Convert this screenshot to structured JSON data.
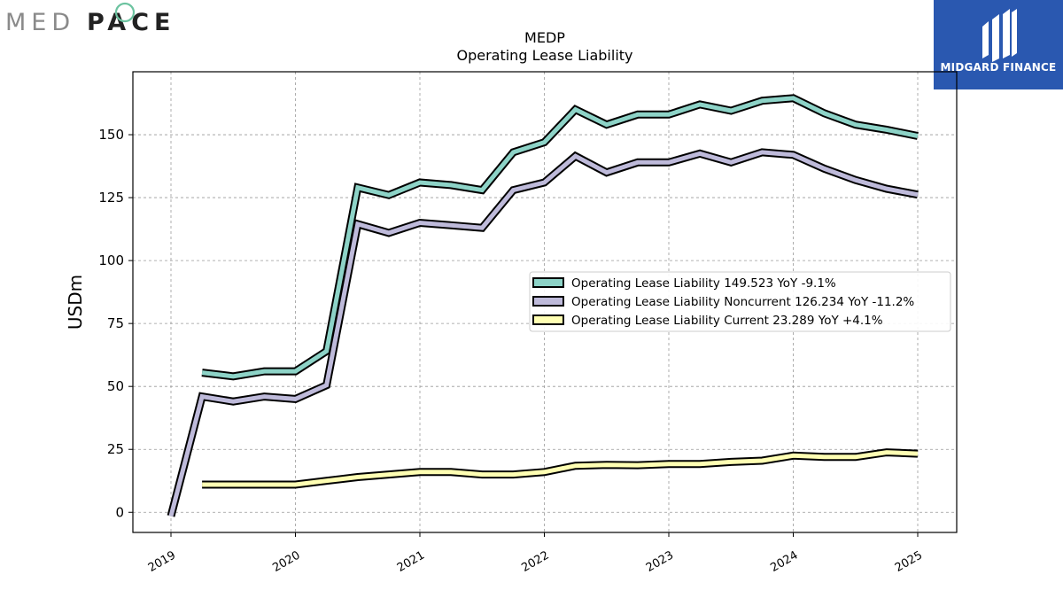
{
  "brand": {
    "left_logo_text_light": "MED",
    "left_logo_text_dark": "PACE",
    "right_logo_text": "MIDGARD FINANCE",
    "right_logo_bg": "#2a58b0",
    "accent_green": "#6cc3a0"
  },
  "chart_data": {
    "type": "line",
    "title": "MEDP",
    "subtitle": "Operating Lease Liability",
    "xlabel": "",
    "ylabel": "USDm",
    "ylim": [
      -8,
      175
    ],
    "xlim": [
      2018.7,
      2025.3
    ],
    "yticks": [
      0,
      25,
      50,
      75,
      100,
      125,
      150
    ],
    "xticks": [
      "2019",
      "2020",
      "2021",
      "2022",
      "2023",
      "2024",
      "2025"
    ],
    "grid": true,
    "legend_position": "center-right",
    "series": [
      {
        "name": "Operating Lease Liability",
        "legend_label": "Operating Lease Liability  149.523 YoY -9.1%",
        "color": "#8dd3c7",
        "points": [
          [
            2019.25,
            55.5
          ],
          [
            2019.5,
            54.0
          ],
          [
            2019.75,
            56.0
          ],
          [
            2020.0,
            56.0
          ],
          [
            2020.25,
            64.0
          ],
          [
            2020.5,
            129.0
          ],
          [
            2020.75,
            126.0
          ],
          [
            2021.0,
            131.0
          ],
          [
            2021.25,
            130.0
          ],
          [
            2021.5,
            128.0
          ],
          [
            2021.75,
            143.0
          ],
          [
            2022.0,
            147.0
          ],
          [
            2022.25,
            160.0
          ],
          [
            2022.5,
            154.0
          ],
          [
            2022.75,
            158.0
          ],
          [
            2023.0,
            158.0
          ],
          [
            2023.25,
            162.0
          ],
          [
            2023.5,
            159.5
          ],
          [
            2023.75,
            163.5
          ],
          [
            2024.0,
            164.5
          ],
          [
            2024.25,
            158.5
          ],
          [
            2024.5,
            154.0
          ],
          [
            2024.75,
            152.0
          ],
          [
            2025.0,
            149.5
          ]
        ]
      },
      {
        "name": "Operating Lease Liability Noncurrent",
        "legend_label": "Operating Lease Liability Noncurrent  126.234 YoY -11.2%",
        "color": "#bebada",
        "points": [
          [
            2019.0,
            -1.5
          ],
          [
            2019.25,
            46.0
          ],
          [
            2019.5,
            44.0
          ],
          [
            2019.75,
            46.0
          ],
          [
            2020.0,
            45.0
          ],
          [
            2020.25,
            50.5
          ],
          [
            2020.5,
            114.5
          ],
          [
            2020.75,
            111.0
          ],
          [
            2021.0,
            115.0
          ],
          [
            2021.25,
            114.0
          ],
          [
            2021.5,
            113.0
          ],
          [
            2021.75,
            128.0
          ],
          [
            2022.0,
            131.0
          ],
          [
            2022.25,
            141.5
          ],
          [
            2022.5,
            135.0
          ],
          [
            2022.75,
            139.0
          ],
          [
            2023.0,
            139.0
          ],
          [
            2023.25,
            142.5
          ],
          [
            2023.5,
            139.0
          ],
          [
            2023.75,
            143.0
          ],
          [
            2024.0,
            142.0
          ],
          [
            2024.25,
            136.5
          ],
          [
            2024.5,
            132.0
          ],
          [
            2024.75,
            128.5
          ],
          [
            2025.0,
            126.2
          ]
        ]
      },
      {
        "name": "Operating Lease Liability Current",
        "legend_label": "Operating Lease Liability Current  23.289 YoY +4.1%",
        "color": "#ffffb3",
        "points": [
          [
            2019.25,
            11.0
          ],
          [
            2019.5,
            11.0
          ],
          [
            2019.75,
            11.0
          ],
          [
            2020.0,
            11.0
          ],
          [
            2020.25,
            12.5
          ],
          [
            2020.5,
            14.0
          ],
          [
            2020.75,
            15.0
          ],
          [
            2021.0,
            16.0
          ],
          [
            2021.25,
            16.0
          ],
          [
            2021.5,
            15.0
          ],
          [
            2021.75,
            15.0
          ],
          [
            2022.0,
            16.0
          ],
          [
            2022.25,
            18.5
          ],
          [
            2022.5,
            18.8
          ],
          [
            2022.75,
            18.7
          ],
          [
            2023.0,
            19.2
          ],
          [
            2023.25,
            19.2
          ],
          [
            2023.5,
            20.0
          ],
          [
            2023.75,
            20.5
          ],
          [
            2024.0,
            22.5
          ],
          [
            2024.25,
            22.0
          ],
          [
            2024.5,
            22.0
          ],
          [
            2024.75,
            23.8
          ],
          [
            2025.0,
            23.3
          ]
        ]
      }
    ]
  }
}
